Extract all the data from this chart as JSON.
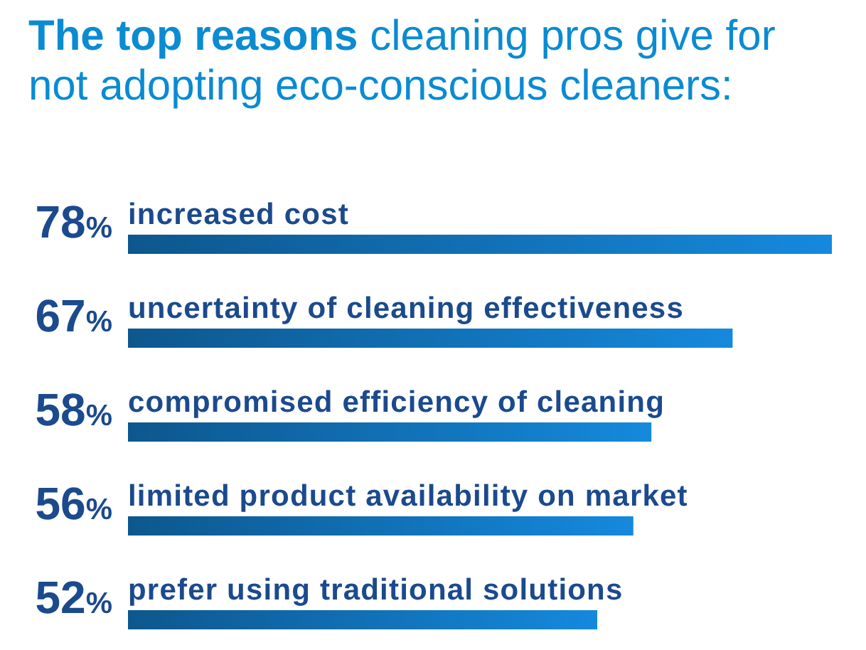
{
  "chart_data": {
    "type": "bar",
    "orientation": "horizontal",
    "title": "The top reasons cleaning pros give for not adopting eco-conscious cleaners:",
    "categories": [
      "increased cost",
      "uncertainty of cleaning effectiveness",
      "compromised efficiency of cleaning",
      "limited product availability on market",
      "prefer using traditional solutions"
    ],
    "values": [
      78,
      67,
      58,
      56,
      52
    ],
    "value_labels": [
      "78%",
      "67%",
      "58%",
      "56%",
      "52%"
    ],
    "color": "#1170b5",
    "tick_labels": "y"
  }
}
